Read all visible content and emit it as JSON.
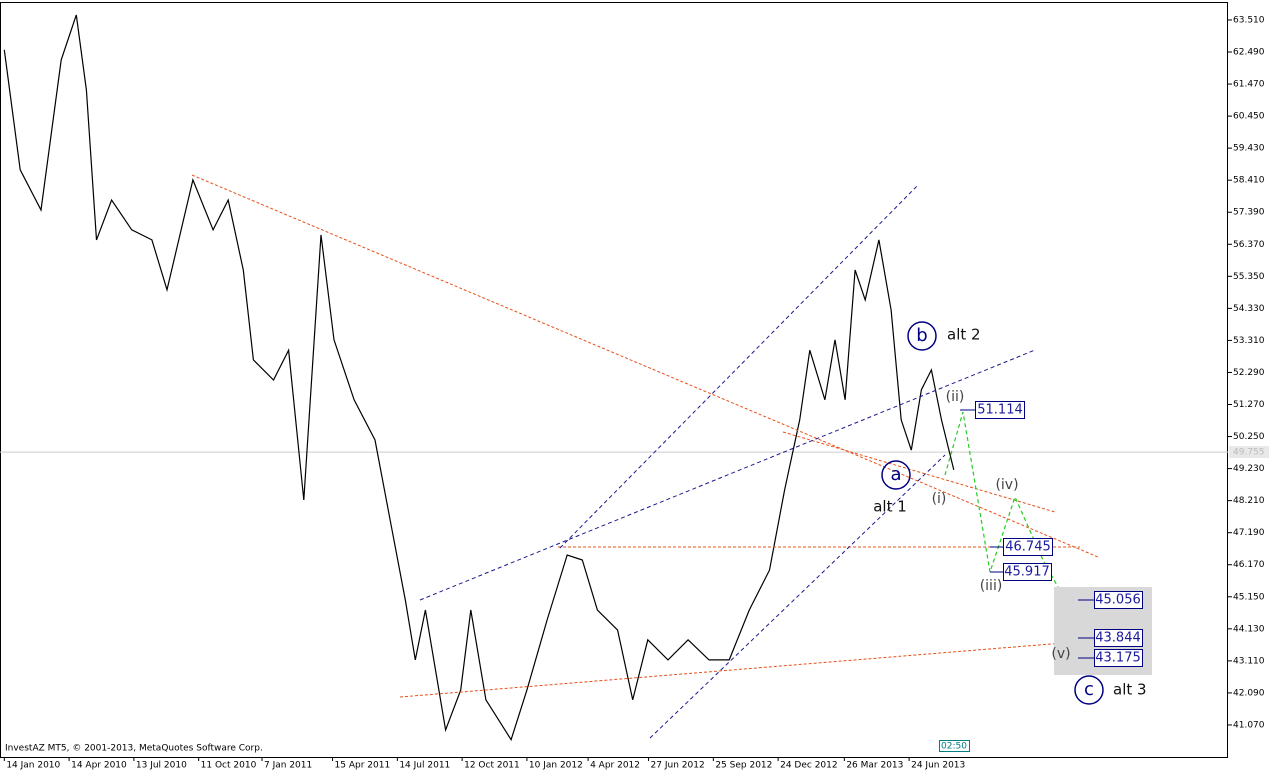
{
  "chart_data": {
    "type": "line",
    "color": "#000000",
    "x": [
      "2010-01-14",
      "2010-02-05",
      "2010-03-06",
      "2010-04-03",
      "2010-04-24",
      "2010-05-08",
      "2010-05-22",
      "2010-06-12",
      "2010-07-10",
      "2010-08-07",
      "2010-08-28",
      "2010-10-03",
      "2010-10-31",
      "2010-11-21",
      "2010-12-12",
      "2010-12-26",
      "2011-01-23",
      "2011-02-13",
      "2011-03-06",
      "2011-03-30",
      "2011-04-17",
      "2011-05-15",
      "2011-06-13",
      "2011-07-04",
      "2011-07-25",
      "2011-08-08",
      "2011-08-22",
      "2011-09-19",
      "2011-10-10",
      "2011-10-24",
      "2011-11-14",
      "2011-12-19",
      "2012-01-10",
      "2012-02-07",
      "2012-03-06",
      "2012-03-27",
      "2012-04-17",
      "2012-05-15",
      "2012-06-05",
      "2012-06-26",
      "2012-07-24",
      "2012-08-21",
      "2012-09-19",
      "2012-10-17",
      "2012-11-14",
      "2012-12-12",
      "2013-01-02",
      "2013-01-23",
      "2013-02-06",
      "2013-02-27",
      "2013-03-13",
      "2013-03-27",
      "2013-04-10",
      "2013-04-24",
      "2013-05-13",
      "2013-05-30",
      "2013-06-13",
      "2013-06-27",
      "2013-07-11",
      "2013-07-25",
      "2013-08-08",
      "2013-08-25"
    ],
    "values": [
      62.56,
      58.74,
      57.46,
      62.24,
      63.67,
      61.28,
      56.51,
      57.78,
      56.83,
      56.51,
      54.92,
      58.42,
      56.83,
      57.78,
      55.55,
      52.69,
      52.05,
      53.0,
      48.23,
      56.67,
      53.33,
      51.42,
      50.14,
      47.6,
      45.05,
      43.14,
      44.73,
      40.91,
      42.18,
      44.73,
      41.87,
      40.6,
      42.18,
      44.41,
      46.48,
      46.32,
      44.73,
      44.09,
      41.87,
      43.78,
      43.14,
      43.78,
      43.14,
      43.14,
      44.73,
      46.0,
      48.55,
      50.78,
      53.0,
      51.42,
      53.33,
      51.42,
      55.55,
      54.6,
      56.51,
      54.28,
      50.78,
      49.82,
      51.74,
      52.37,
      50.78,
      49.19
    ],
    "xlim": [
      "2010-01-08",
      "2014-09-10"
    ],
    "ylim": [
      40.05,
      64.05
    ],
    "yticks": [
      {
        "value": 63.51,
        "label": "63.510"
      },
      {
        "value": 62.49,
        "label": "62.490"
      },
      {
        "value": 61.47,
        "label": "61.470"
      },
      {
        "value": 60.45,
        "label": "60.450"
      },
      {
        "value": 59.43,
        "label": "59.430"
      },
      {
        "value": 58.41,
        "label": "58.410"
      },
      {
        "value": 57.39,
        "label": "57.390"
      },
      {
        "value": 56.37,
        "label": "56.370"
      },
      {
        "value": 55.35,
        "label": "55.350"
      },
      {
        "value": 54.33,
        "label": "54.330"
      },
      {
        "value": 53.31,
        "label": "53.310"
      },
      {
        "value": 52.29,
        "label": "52.290"
      },
      {
        "value": 51.27,
        "label": "51.270"
      },
      {
        "value": 50.25,
        "label": "50.250"
      },
      {
        "value": 49.23,
        "label": "49.230"
      },
      {
        "value": 48.21,
        "label": "48.210"
      },
      {
        "value": 47.19,
        "label": "47.190"
      },
      {
        "value": 46.17,
        "label": "46.170"
      },
      {
        "value": 45.15,
        "label": "45.150"
      },
      {
        "value": 44.13,
        "label": "44.130"
      },
      {
        "value": 43.11,
        "label": "43.110"
      },
      {
        "value": 42.09,
        "label": "42.090"
      },
      {
        "value": 41.07,
        "label": "41.070"
      }
    ],
    "xticks": [
      {
        "value": "2010-01-14",
        "label": "14 Jan 2010"
      },
      {
        "value": "2010-04-14",
        "label": "14 Apr 2010"
      },
      {
        "value": "2010-07-13",
        "label": "13 Jul 2010"
      },
      {
        "value": "2010-10-11",
        "label": "11 Oct 2010"
      },
      {
        "value": "2011-01-07",
        "label": "7 Jan 2011"
      },
      {
        "value": "2011-04-15",
        "label": "15 Apr 2011"
      },
      {
        "value": "2011-07-14",
        "label": "14 Jul 2011"
      },
      {
        "value": "2011-10-12",
        "label": "12 Oct 2011"
      },
      {
        "value": "2012-01-10",
        "label": "10 Jan 2012"
      },
      {
        "value": "2012-04-04",
        "label": "4 Apr 2012"
      },
      {
        "value": "2012-06-27",
        "label": "27 Jun 2012"
      },
      {
        "value": "2012-09-25",
        "label": "25 Sep 2012"
      },
      {
        "value": "2012-12-24",
        "label": "24 Dec 2012"
      },
      {
        "value": "2013-03-26",
        "label": "26 Mar 2013"
      },
      {
        "value": "2013-06-24",
        "label": "24 Jun 2013"
      }
    ],
    "current_price": {
      "value": 49.755,
      "label": "49.755"
    },
    "annotations": {
      "b": "b",
      "alt2": "alt 2",
      "ii": "(ii)",
      "p1": "51.114",
      "a": "a",
      "alt1": "alt 1",
      "i": "(i)",
      "iv": "(iv)",
      "p2": "46.745",
      "p3": "45.917",
      "iii": "(iii)",
      "p4": "45.056",
      "p5": "43.844",
      "p6": "43.175",
      "v": "(v)",
      "c": "c",
      "alt3": "alt 3"
    },
    "footer": "InvestAZ MT5, © 2001-2013, MetaQuotes Software Corp.",
    "clock": "02:50"
  }
}
